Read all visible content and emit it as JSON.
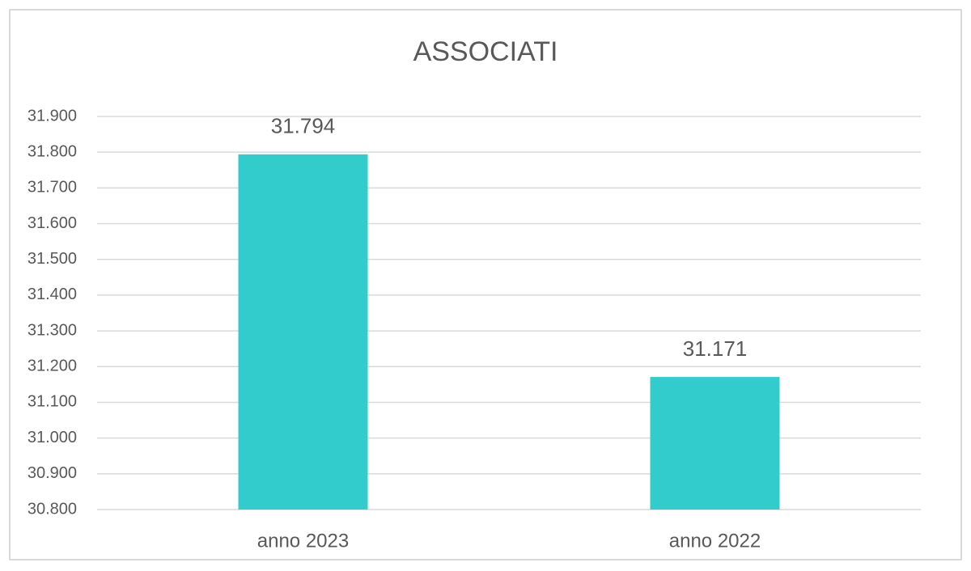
{
  "chart_data": {
    "type": "bar",
    "title": "ASSOCIATI",
    "categories": [
      "anno 2023",
      "anno 2022"
    ],
    "values": [
      31794,
      31171
    ],
    "value_labels": [
      "31.794",
      "31.171"
    ],
    "color": "#33cccc",
    "ylim": [
      30800,
      31900
    ],
    "yticks": [
      {
        "value": 30800,
        "label": "30.800"
      },
      {
        "value": 30900,
        "label": "30.900"
      },
      {
        "value": 31000,
        "label": "31.000"
      },
      {
        "value": 31100,
        "label": "31.100"
      },
      {
        "value": 31200,
        "label": "31.200"
      },
      {
        "value": 31300,
        "label": "31.300"
      },
      {
        "value": 31400,
        "label": "31.400"
      },
      {
        "value": 31500,
        "label": "31.500"
      },
      {
        "value": 31600,
        "label": "31.600"
      },
      {
        "value": 31700,
        "label": "31.700"
      },
      {
        "value": 31800,
        "label": "31.800"
      },
      {
        "value": 31900,
        "label": "31.900"
      }
    ],
    "grid": true
  }
}
